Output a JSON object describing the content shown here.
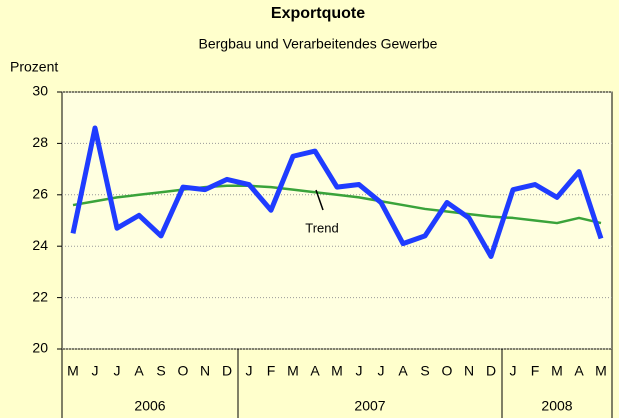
{
  "chart_data": {
    "type": "line",
    "title": "Exportquote",
    "subtitle": "Bergbau und Verarbeitendes Gewerbe",
    "y_axis_label": "Prozent",
    "categories": [
      "M",
      "J",
      "J",
      "A",
      "S",
      "O",
      "N",
      "D",
      "J",
      "F",
      "M",
      "A",
      "M",
      "J",
      "J",
      "A",
      "S",
      "O",
      "N",
      "D",
      "J",
      "F",
      "M",
      "A",
      "M"
    ],
    "year_groups": [
      {
        "label": "2006",
        "months": 8
      },
      {
        "label": "2007",
        "months": 12
      },
      {
        "label": "2008",
        "months": 5
      }
    ],
    "series": [
      {
        "name": "Exportquote",
        "color": "#1f3cff",
        "values": [
          24.5,
          28.6,
          24.7,
          25.2,
          24.4,
          26.3,
          26.2,
          26.6,
          26.4,
          25.4,
          27.5,
          27.7,
          26.3,
          26.4,
          25.7,
          24.1,
          24.4,
          25.7,
          25.1,
          23.6,
          26.2,
          26.4,
          25.9,
          26.9,
          24.3
        ]
      },
      {
        "name": "Trend",
        "color": "#3aa33a",
        "values": [
          25.6,
          25.75,
          25.9,
          26.0,
          26.1,
          26.2,
          26.3,
          26.35,
          26.35,
          26.3,
          26.2,
          26.1,
          26.0,
          25.9,
          25.75,
          25.6,
          25.45,
          25.35,
          25.25,
          25.15,
          25.1,
          25.0,
          24.9,
          25.1,
          24.9
        ]
      }
    ],
    "annotations": [
      {
        "text": "Trend"
      }
    ],
    "ylim": [
      20,
      30
    ],
    "yticks": [
      20,
      22,
      24,
      26,
      28,
      30
    ],
    "grid": true
  }
}
